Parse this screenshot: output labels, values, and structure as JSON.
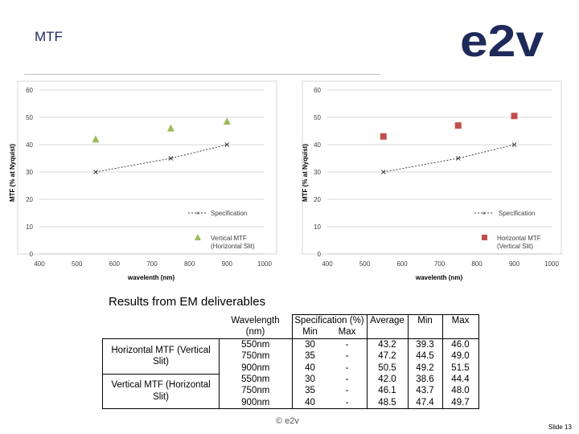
{
  "header": {
    "title": "MTF",
    "logo_text": "e2v"
  },
  "colors": {
    "navy": "#1e2a5a",
    "green": "#9bbb59",
    "red": "#c0504d",
    "spec": "#404040"
  },
  "chart_data": [
    {
      "type": "scatter",
      "xlabel": "wavelenth (nm)",
      "ylabel": "MTF (% at Nyquist)",
      "xlim": [
        400,
        1000
      ],
      "ylim": [
        0,
        60
      ],
      "xticks": [
        400,
        500,
        600,
        700,
        800,
        900,
        1000
      ],
      "yticks": [
        0,
        10,
        20,
        30,
        40,
        50,
        60
      ],
      "grid": "horizontal",
      "legend_position": "right",
      "series": [
        {
          "name": "Specification",
          "style": "dashed-line-x",
          "color": "#404040",
          "x": [
            550,
            750,
            900
          ],
          "y": [
            30,
            35,
            40
          ]
        },
        {
          "name": "Vertical MTF (Horizontal Slit)",
          "style": "triangle",
          "color": "#9bbb59",
          "x": [
            550,
            750,
            900
          ],
          "y": [
            42,
            46,
            48.5
          ]
        }
      ]
    },
    {
      "type": "scatter",
      "xlabel": "wavelenth (nm)",
      "ylabel": "MTF (% at Nyquist)",
      "xlim": [
        400,
        1000
      ],
      "ylim": [
        0,
        60
      ],
      "xticks": [
        400,
        500,
        600,
        700,
        800,
        900,
        1000
      ],
      "yticks": [
        0,
        10,
        20,
        30,
        40,
        50,
        60
      ],
      "grid": "horizontal",
      "legend_position": "right",
      "series": [
        {
          "name": "Specification",
          "style": "dashed-line-x",
          "color": "#404040",
          "x": [
            550,
            750,
            900
          ],
          "y": [
            30,
            35,
            40
          ]
        },
        {
          "name": "Horizontal MTF (Vertical Slit)",
          "style": "square",
          "color": "#c0504d",
          "x": [
            550,
            750,
            900
          ],
          "y": [
            43,
            47,
            50.5
          ]
        }
      ]
    }
  ],
  "legend_labels": {
    "left_spec": "Specification",
    "left_series_l1": "Vertical MTF",
    "left_series_l2": "(Horizontal Slit)",
    "right_spec": "Specification",
    "right_series_l1": "Horizontal MTF",
    "right_series_l2": "(Vertical Slit)"
  },
  "results": {
    "heading": "Results from EM deliverables",
    "headers": {
      "wavelength": "Wavelength (nm)",
      "specification": "Specification (%)",
      "min": "Min",
      "max": "Max",
      "average": "Average",
      "meas_min": "Min",
      "meas_max": "Max"
    },
    "groups": [
      {
        "label": "Horizontal MTF (Vertical Slit)",
        "rows": [
          {
            "wavelength": "550nm",
            "spec_min": "30",
            "spec_max": "-",
            "average": "43.2",
            "min": "39.3",
            "max": "46.0"
          },
          {
            "wavelength": "750nm",
            "spec_min": "35",
            "spec_max": "-",
            "average": "47.2",
            "min": "44.5",
            "max": "49.0"
          },
          {
            "wavelength": "900nm",
            "spec_min": "40",
            "spec_max": "-",
            "average": "50.5",
            "min": "49.2",
            "max": "51.5"
          }
        ]
      },
      {
        "label": "Vertical MTF (Horizontal Slit)",
        "rows": [
          {
            "wavelength": "550nm",
            "spec_min": "30",
            "spec_max": "-",
            "average": "42.0",
            "min": "38.6",
            "max": "44.4"
          },
          {
            "wavelength": "750nm",
            "spec_min": "35",
            "spec_max": "-",
            "average": "46.1",
            "min": "43.7",
            "max": "48.0"
          },
          {
            "wavelength": "900nm",
            "spec_min": "40",
            "spec_max": "-",
            "average": "48.5",
            "min": "47.4",
            "max": "49.7"
          }
        ]
      }
    ]
  },
  "footer": {
    "copyright": "© e2v",
    "slide": "Slide 13"
  }
}
